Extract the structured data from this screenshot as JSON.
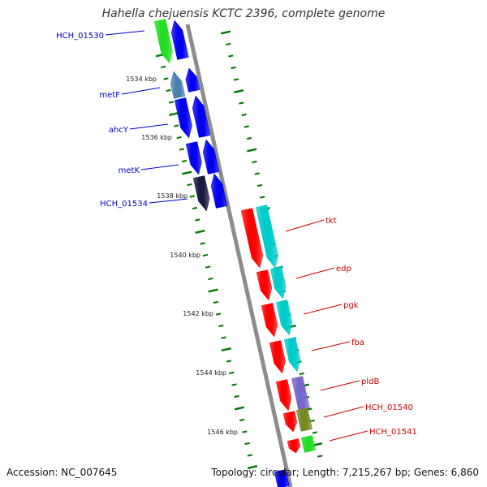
{
  "title": "Hahella chejuensis KCTC 2396, complete genome",
  "accession": "Accession: NC_007645",
  "summary": "Topology: circular; Length: 7,215,267 bp; Genes: 6,860",
  "colors": {
    "backbone": "#8c8c8c",
    "tick": "#007700",
    "label_blue": "#0000cc",
    "label_red": "#cc0000",
    "gene_blue": "#0000ee",
    "gene_red": "#ff0000",
    "gene_cyan": "#00cccc",
    "gene_green": "#22dd22",
    "gene_steel": "#4a7fb0",
    "gene_purple": "#7766cc",
    "gene_olive": "#778822"
  },
  "scale_labels": [
    "1534 kbp",
    "1536 kbp",
    "1538 kbp",
    "1540 kbp",
    "1542 kbp",
    "1544 kbp",
    "1546 kbp"
  ],
  "blue_gene_labels": [
    "HCH_01530",
    "metF",
    "ahcY",
    "metK",
    "HCH_01534"
  ],
  "red_gene_labels": [
    "tkt",
    "edp",
    "pgk",
    "fba",
    "pldB",
    "HCH_01540",
    "HCH_01541"
  ]
}
